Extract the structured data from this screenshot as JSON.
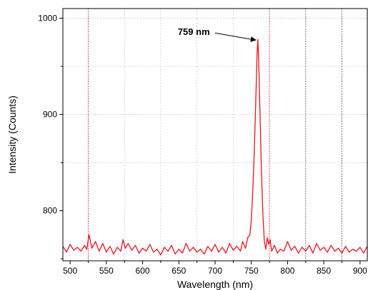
{
  "chart_data": {
    "type": "line",
    "title": "",
    "xlabel": "Wavelength (nm)",
    "ylabel": "Intensity (Counts)",
    "xlim": [
      490,
      910
    ],
    "ylim": [
      748,
      1010
    ],
    "x_ticks": [
      500,
      550,
      600,
      650,
      700,
      750,
      800,
      850,
      900
    ],
    "y_ticks": [
      800,
      900,
      1000
    ],
    "grid": true,
    "vertical_markers": [
      525,
      775,
      825,
      875
    ],
    "series": [
      {
        "color": "#e8141e",
        "x": [
          490,
          495,
          500,
          505,
          510,
          515,
          520,
          523,
          526,
          530,
          535,
          540,
          545,
          550,
          555,
          560,
          565,
          570,
          573,
          576,
          580,
          585,
          590,
          595,
          600,
          605,
          610,
          615,
          620,
          625,
          630,
          635,
          640,
          645,
          650,
          655,
          660,
          665,
          670,
          675,
          680,
          685,
          690,
          695,
          700,
          705,
          710,
          715,
          720,
          725,
          730,
          735,
          738,
          742,
          745,
          748,
          750,
          752,
          754,
          756,
          758,
          759,
          760,
          762,
          764,
          766,
          768,
          770,
          772,
          774,
          776,
          778,
          782,
          786,
          790,
          795,
          800,
          805,
          810,
          815,
          820,
          825,
          830,
          835,
          840,
          845,
          850,
          855,
          860,
          865,
          870,
          875,
          880,
          885,
          890,
          895,
          900,
          905,
          910
        ],
        "y": [
          763,
          757,
          765,
          759,
          762,
          758,
          764,
          760,
          775,
          761,
          768,
          758,
          766,
          757,
          763,
          755,
          762,
          758,
          770,
          761,
          766,
          759,
          764,
          756,
          761,
          758,
          765,
          757,
          760,
          754,
          762,
          758,
          764,
          755,
          760,
          756,
          766,
          758,
          762,
          757,
          760,
          755,
          763,
          758,
          765,
          757,
          762,
          756,
          766,
          759,
          763,
          758,
          768,
          761,
          772,
          775,
          790,
          820,
          860,
          910,
          965,
          978,
          960,
          900,
          840,
          795,
          768,
          760,
          772,
          765,
          770,
          758,
          764,
          756,
          760,
          758,
          768,
          759,
          763,
          756,
          762,
          758,
          764,
          756,
          766,
          759,
          762,
          757,
          764,
          758,
          761,
          756,
          763,
          757,
          760,
          758,
          762,
          756,
          763
        ]
      }
    ],
    "annotations": [
      {
        "text": "759 nm",
        "x": 759,
        "y": 978
      }
    ]
  }
}
